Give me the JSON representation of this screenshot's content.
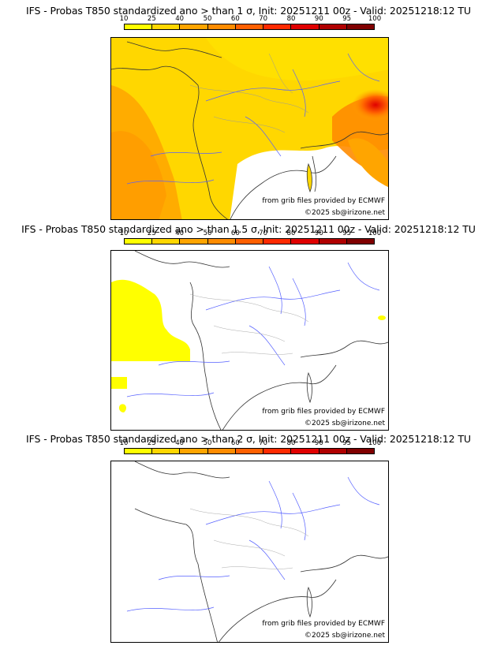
{
  "colorbar": {
    "labels": [
      "10",
      "25",
      "40",
      "50",
      "60",
      "70",
      "80",
      "90",
      "95",
      "100"
    ],
    "colors": [
      "#ffff00",
      "#ffd700",
      "#ffa500",
      "#ff8c00",
      "#ff6000",
      "#ff2a00",
      "#e00000",
      "#b00000",
      "#800000"
    ]
  },
  "panels": [
    {
      "title": "IFS - Probas T850  standardized ano > than 1 σ, Init: 20251211 00z - Valid: 20251218:12 TU",
      "source": "from grib files provided by ECMWF",
      "copyright": "©2025 sb@irizone.net",
      "fill_level": "40-70% over most of the domain, 80-95% over the Alps",
      "coverage": "full"
    },
    {
      "title": "IFS - Probas T850  standardized ano > than 1.5 σ, Init: 20251211 00z - Valid: 20251218:12 TU",
      "source": "from grib files provided by ECMWF",
      "copyright": "©2025 sb@irizone.net",
      "fill_level": "10-25% over the Atlantic west of Brittany",
      "coverage": "west"
    },
    {
      "title": "IFS - Probas T850  standardized ano > than 2 σ, Init: 20251211 00z - Valid: 20251218:12 TU",
      "source": "from grib files provided by ECMWF",
      "copyright": "©2025 sb@irizone.net",
      "fill_level": "none",
      "coverage": "none"
    }
  ]
}
